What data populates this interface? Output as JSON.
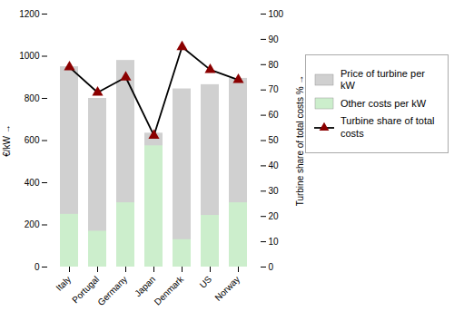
{
  "chart_data": {
    "type": "bar",
    "stacked": false,
    "categories": [
      "Italy",
      "Portugal",
      "Germany",
      "Japan",
      "Denmark",
      "US",
      "Norway"
    ],
    "ylabel": "€/kW",
    "y2label": "Turbine share of total costs %",
    "ylim": [
      0,
      1200
    ],
    "yticks": [
      0,
      200,
      400,
      600,
      800,
      1000,
      1200
    ],
    "y2lim": [
      0,
      100
    ],
    "y2ticks": [
      0,
      10,
      20,
      30,
      40,
      50,
      60,
      70,
      80,
      90,
      100
    ],
    "grid": false,
    "legend": "right",
    "series": [
      {
        "name": "Price of turbine per kW",
        "type": "bar",
        "color": "#d0d0d0",
        "values": [
          950,
          800,
          980,
          635,
          845,
          865,
          895
        ]
      },
      {
        "name": "Other costs per kW",
        "type": "bar",
        "color": "#cceecc",
        "values": [
          250,
          170,
          305,
          575,
          130,
          245,
          305
        ]
      },
      {
        "name": "Turbine share of total\ncosts",
        "type": "line",
        "axis": "y2",
        "color": "#000000",
        "colors": [
          "#8b0000",
          "#8b0000",
          "#8b0000",
          "#8b0000",
          "#8b0000",
          "#8b0000",
          "#8b0000"
        ],
        "marker": "triangle",
        "values": [
          79,
          69,
          75,
          52,
          87,
          78,
          74
        ]
      }
    ]
  }
}
